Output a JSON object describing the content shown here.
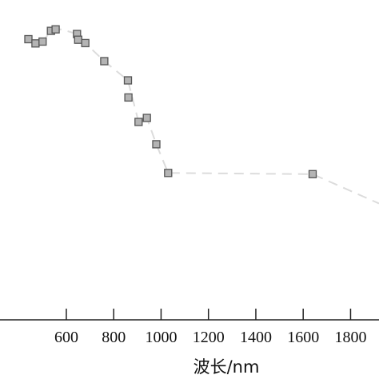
{
  "chart_data": {
    "type": "scatter",
    "title": "",
    "xlabel": "波长/nm",
    "ylabel": "",
    "xlim": [
      320,
      1920
    ],
    "ylim": [
      0,
      1
    ],
    "x_ticks": [
      600,
      800,
      1000,
      1200,
      1400,
      1600,
      1800
    ],
    "x_tick_labels": [
      "600",
      "800",
      "1000",
      "1200",
      "1400",
      "1600",
      "1800"
    ],
    "grid": false,
    "legend": "none",
    "marker_fill": "#b4b4b4",
    "marker_stroke": "#555555",
    "line_color": "#dcdcdc",
    "series": [
      {
        "points": [
          {
            "x": 440,
            "y": 0.898
          },
          {
            "x": 470,
            "y": 0.884
          },
          {
            "x": 500,
            "y": 0.89
          },
          {
            "x": 535,
            "y": 0.925
          },
          {
            "x": 555,
            "y": 0.93
          },
          {
            "x": 645,
            "y": 0.915
          },
          {
            "x": 650,
            "y": 0.896
          },
          {
            "x": 680,
            "y": 0.885
          },
          {
            "x": 760,
            "y": 0.826
          },
          {
            "x": 860,
            "y": 0.763
          },
          {
            "x": 862,
            "y": 0.707
          },
          {
            "x": 905,
            "y": 0.627
          },
          {
            "x": 940,
            "y": 0.64
          },
          {
            "x": 980,
            "y": 0.554
          },
          {
            "x": 1030,
            "y": 0.46
          },
          {
            "x": 1640,
            "y": 0.456
          }
        ]
      }
    ],
    "trend_line": [
      {
        "x": 430,
        "y": 0.895
      },
      {
        "x": 470,
        "y": 0.885
      },
      {
        "x": 500,
        "y": 0.89
      },
      {
        "x": 535,
        "y": 0.925
      },
      {
        "x": 555,
        "y": 0.93
      },
      {
        "x": 580,
        "y": 0.93
      },
      {
        "x": 645,
        "y": 0.915
      },
      {
        "x": 680,
        "y": 0.885
      },
      {
        "x": 760,
        "y": 0.826
      },
      {
        "x": 860,
        "y": 0.763
      },
      {
        "x": 905,
        "y": 0.627
      },
      {
        "x": 940,
        "y": 0.64
      },
      {
        "x": 980,
        "y": 0.554
      },
      {
        "x": 1030,
        "y": 0.46
      },
      {
        "x": 1640,
        "y": 0.456
      },
      {
        "x": 1920,
        "y": 0.36
      }
    ]
  }
}
